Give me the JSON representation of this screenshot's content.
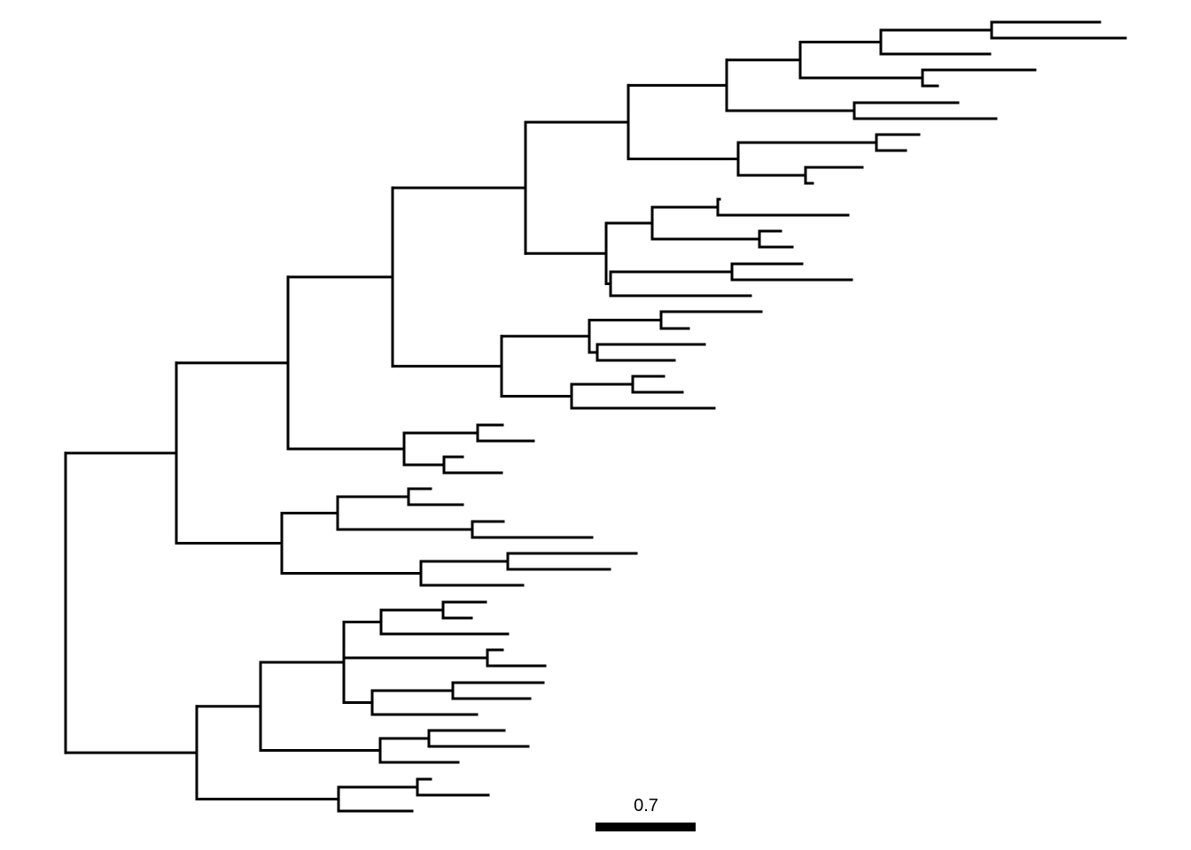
{
  "tree": {
    "line_color": "#000000",
    "scale_bar": {
      "label": "0.7",
      "value": 0.7
    }
  }
}
